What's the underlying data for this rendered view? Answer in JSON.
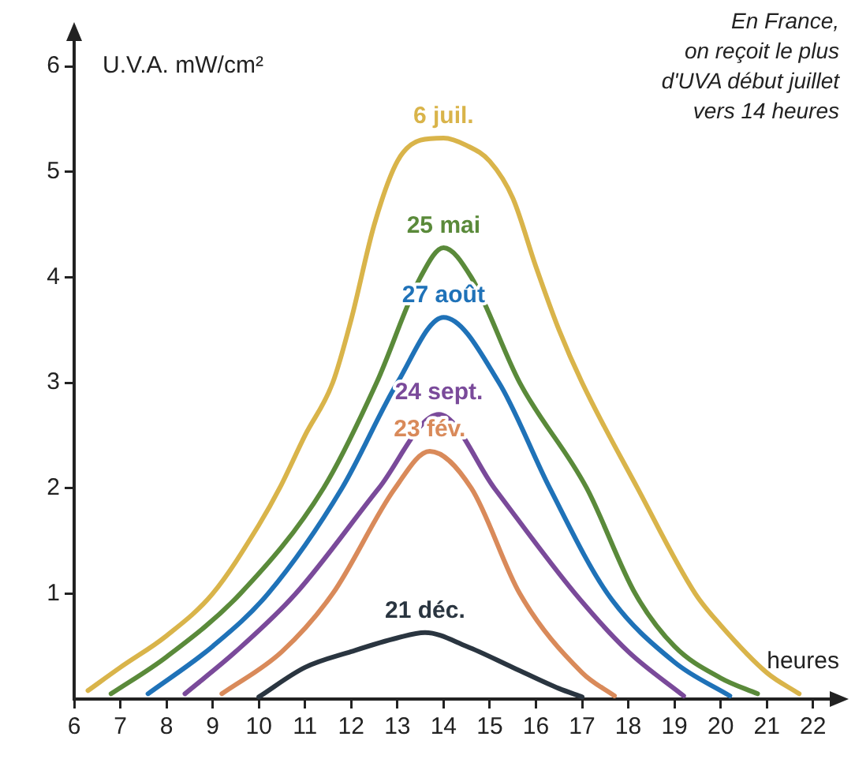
{
  "chart_data": {
    "type": "line",
    "ylabel": "U.V.A. mW/cm²",
    "xlabel": "heures",
    "annotations": [
      "En France,\non reçoit le plus\nd'UVA début juillet\nvers 14 heures"
    ],
    "xlim": [
      6,
      22.5
    ],
    "xticks": [
      6,
      7,
      8,
      9,
      10,
      11,
      12,
      13,
      14,
      15,
      16,
      17,
      18,
      19,
      20,
      21,
      22
    ],
    "ylim": [
      0,
      6.3
    ],
    "yticks": [
      1,
      2,
      3,
      4,
      5,
      6
    ],
    "grid": false,
    "legend": false,
    "marker": "none",
    "line_style": "solid",
    "series": [
      {
        "name": "6 juil.",
        "color": "#d9b44a",
        "x": [
          6.3,
          7,
          8,
          9,
          10,
          10.45,
          11,
          11.6,
          12,
          12.5,
          13,
          13.5,
          14,
          14.5,
          15,
          15.5,
          16,
          16.5,
          17,
          18.2,
          19.45,
          20,
          21,
          21.7
        ],
        "values": [
          0.08,
          0.3,
          0.6,
          1.0,
          1.65,
          2.0,
          2.5,
          3.0,
          3.6,
          4.5,
          5.1,
          5.3,
          5.32,
          5.25,
          5.1,
          4.75,
          4.1,
          3.5,
          3.0,
          2.0,
          1.0,
          0.7,
          0.25,
          0.05
        ]
      },
      {
        "name": "25 mai",
        "color": "#5a8a3a",
        "x": [
          6.8,
          8,
          9.6,
          11.4,
          12.55,
          13.5,
          14,
          14.6,
          15.65,
          17.1,
          18.15,
          19,
          20,
          20.8
        ],
        "values": [
          0.05,
          0.4,
          1.0,
          2.0,
          3.0,
          4.0,
          4.28,
          4.0,
          3.0,
          2.0,
          1.0,
          0.5,
          0.2,
          0.05
        ]
      },
      {
        "name": "27 août",
        "color": "#1f72b8",
        "x": [
          7.6,
          9,
          10.2,
          11.8,
          13.0,
          14,
          15.2,
          16.3,
          17.55,
          19,
          20.2
        ],
        "values": [
          0.05,
          0.5,
          1.0,
          2.0,
          3.0,
          3.62,
          3.0,
          2.0,
          1.0,
          0.35,
          0.03
        ]
      },
      {
        "name": "24 sept.",
        "color": "#7a4a9a",
        "x": [
          8.4,
          9.5,
          10.8,
          12.6,
          13.9,
          15.1,
          16.85,
          18,
          19.2
        ],
        "values": [
          0.05,
          0.45,
          1.0,
          2.0,
          2.7,
          2.0,
          1.0,
          0.45,
          0.03
        ]
      },
      {
        "name": "23 fév.",
        "color": "#d98a5a",
        "x": [
          9.2,
          10.5,
          11.6,
          12.95,
          13.7,
          14.6,
          15.65,
          17,
          17.7
        ],
        "values": [
          0.05,
          0.45,
          1.0,
          2.0,
          2.35,
          2.0,
          1.0,
          0.25,
          0.03
        ]
      },
      {
        "name": "21 déc.",
        "color": "#2a3540",
        "x": [
          10,
          11,
          12,
          13,
          13.6,
          14.5,
          15.5,
          16.5,
          17
        ],
        "values": [
          0.02,
          0.3,
          0.45,
          0.58,
          0.63,
          0.5,
          0.3,
          0.1,
          0.02
        ]
      }
    ]
  }
}
